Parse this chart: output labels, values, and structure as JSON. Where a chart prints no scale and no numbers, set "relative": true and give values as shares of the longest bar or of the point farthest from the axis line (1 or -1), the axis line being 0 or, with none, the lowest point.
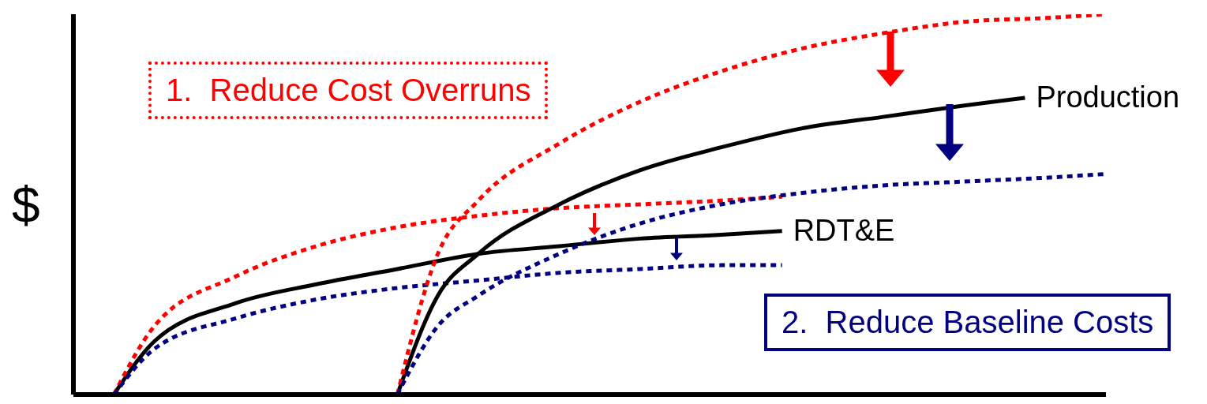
{
  "chart_data": {
    "type": "line",
    "relative": true,
    "ylabel": "$",
    "grid": false,
    "legend": false,
    "marker": "none",
    "categories": [
      null,
      null,
      null,
      null,
      null,
      null,
      null,
      null,
      null,
      null,
      null,
      null,
      null,
      null,
      null,
      null,
      null,
      null,
      null,
      null,
      null,
      null,
      null,
      null,
      null,
      null,
      null,
      null,
      null,
      null,
      null,
      null,
      null,
      null,
      null,
      null,
      null,
      null,
      null,
      null,
      null,
      null,
      null,
      null,
      null,
      null,
      null,
      null,
      null,
      null,
      null,
      null
    ],
    "series": [
      {
        "name": "RDT&E",
        "color": "#000000",
        "line_style": "solid",
        "values": [
          null,
          null,
          0,
          null,
          0.14,
          null,
          null,
          null,
          0.24,
          null,
          null,
          null,
          0.29,
          null,
          null,
          null,
          0.33,
          null,
          null,
          null,
          0.37,
          null,
          null,
          null,
          0.39,
          null,
          null,
          null,
          0.41,
          null,
          null,
          null,
          0.42,
          null,
          null,
          0.43,
          null,
          null,
          null,
          null,
          null,
          null,
          null,
          null,
          null,
          null,
          null,
          null,
          null,
          null,
          null,
          null
        ]
      },
      {
        "color": "#ff0000",
        "line_style": "dotted",
        "values": [
          null,
          null,
          0,
          null,
          0.18,
          null,
          null,
          null,
          0.31,
          null,
          null,
          null,
          0.39,
          null,
          null,
          null,
          0.44,
          null,
          null,
          null,
          0.47,
          null,
          null,
          null,
          0.49,
          null,
          null,
          null,
          0.5,
          null,
          null,
          null,
          0.51,
          null,
          null,
          0.52,
          null,
          null,
          null,
          null,
          null,
          null,
          null,
          null,
          null,
          null,
          null,
          null,
          null,
          null,
          null,
          null
        ]
      },
      {
        "color": "#000080",
        "line_style": "dotted",
        "values": [
          null,
          null,
          0,
          null,
          0.12,
          null,
          null,
          null,
          0.2,
          null,
          null,
          null,
          0.25,
          null,
          null,
          null,
          0.28,
          null,
          null,
          null,
          0.3,
          null,
          null,
          null,
          0.32,
          null,
          null,
          null,
          0.33,
          null,
          null,
          null,
          0.34,
          null,
          null,
          0.34,
          null,
          null,
          null,
          null,
          null,
          null,
          null,
          null,
          null,
          null,
          null,
          null,
          null,
          null,
          null,
          null
        ]
      },
      {
        "name": "Production",
        "color": "#000000",
        "line_style": "solid",
        "values": [
          null,
          null,
          null,
          null,
          null,
          null,
          null,
          null,
          null,
          null,
          null,
          null,
          null,
          null,
          null,
          null,
          0,
          null,
          0.26,
          null,
          0.37,
          null,
          null,
          null,
          0.5,
          null,
          null,
          null,
          0.59,
          null,
          null,
          null,
          0.65,
          null,
          null,
          null,
          0.7,
          null,
          null,
          null,
          0.73,
          null,
          null,
          null,
          0.76,
          null,
          null,
          0.78,
          null,
          null,
          null,
          null
        ]
      },
      {
        "color": "#ff0000",
        "line_style": "dotted",
        "values": [
          null,
          null,
          null,
          null,
          null,
          null,
          null,
          null,
          null,
          null,
          null,
          null,
          null,
          null,
          null,
          null,
          0,
          null,
          0.37,
          null,
          0.51,
          null,
          null,
          null,
          0.66,
          null,
          null,
          null,
          0.77,
          null,
          null,
          null,
          0.85,
          null,
          null,
          null,
          0.91,
          null,
          null,
          null,
          0.95,
          null,
          null,
          null,
          0.98,
          null,
          null,
          null,
          0.99,
          null,
          null,
          1
        ]
      },
      {
        "color": "#000080",
        "line_style": "dotted",
        "values": [
          null,
          null,
          null,
          null,
          null,
          null,
          null,
          null,
          null,
          null,
          null,
          null,
          null,
          null,
          null,
          null,
          0,
          null,
          0.18,
          null,
          0.26,
          null,
          null,
          null,
          0.37,
          null,
          null,
          null,
          0.45,
          null,
          null,
          null,
          0.5,
          null,
          null,
          null,
          0.53,
          null,
          null,
          null,
          0.55,
          null,
          null,
          null,
          0.56,
          null,
          null,
          null,
          0.57,
          null,
          null,
          0.58
        ]
      }
    ],
    "annotations": [
      "1.  Reduce Cost Overruns",
      "2.  Reduce Baseline Costs"
    ]
  }
}
